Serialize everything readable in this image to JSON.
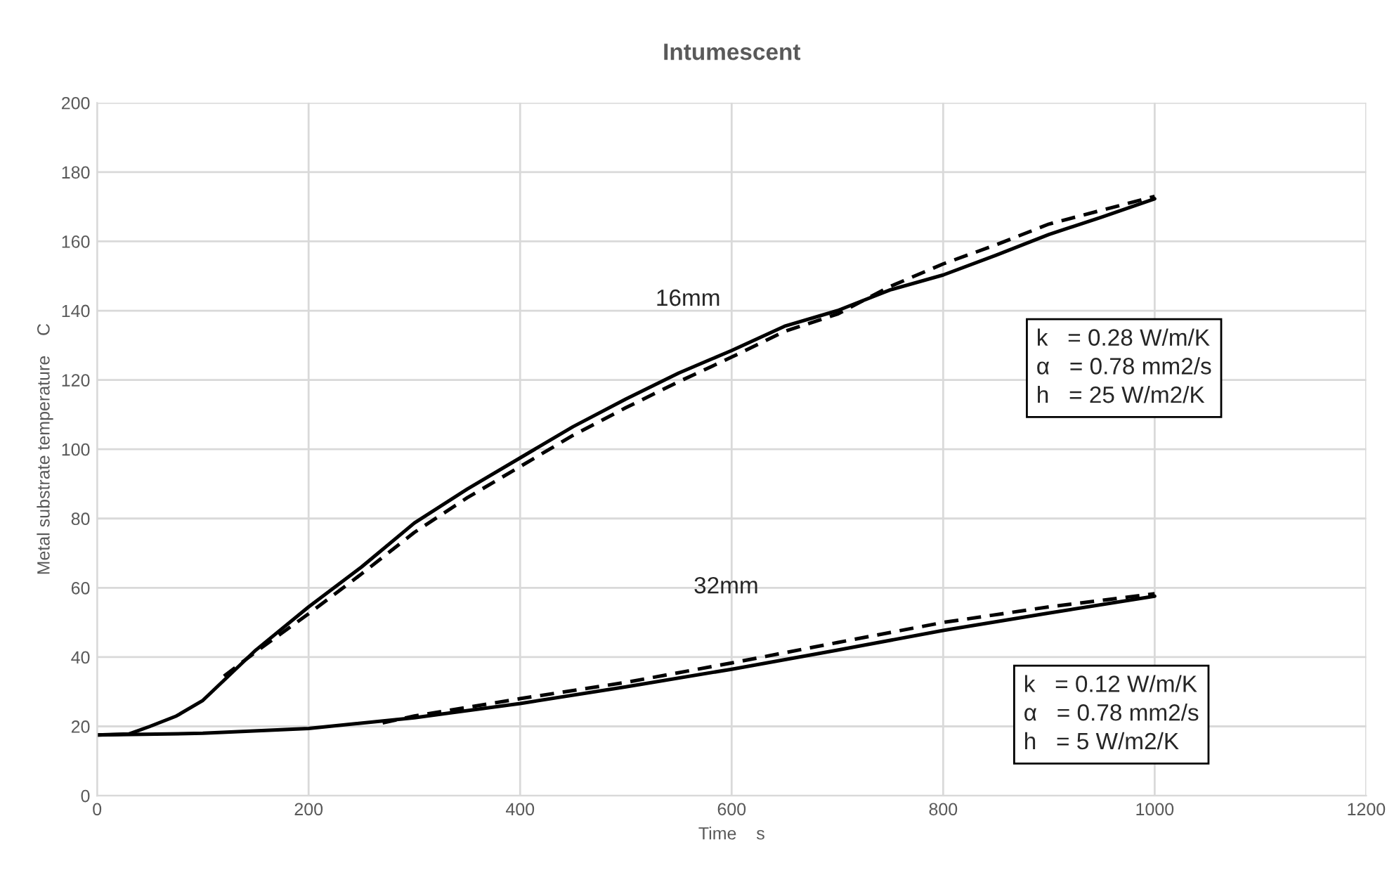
{
  "chart_data": {
    "type": "line",
    "title": "Intumescent",
    "xlabel": "Time    s",
    "ylabel": "Metal substrate temperature    C",
    "xlim": [
      0,
      1200
    ],
    "xticks": [
      0,
      200,
      400,
      600,
      800,
      1000,
      1200
    ],
    "ylim": [
      0,
      200
    ],
    "yticks": [
      0,
      20,
      40,
      60,
      80,
      100,
      120,
      140,
      160,
      180,
      200
    ],
    "grid": true,
    "series": [
      {
        "color": "#000000",
        "line_style": "solid",
        "x": [
          0,
          30,
          50,
          75,
          100,
          150,
          200,
          250,
          300,
          350,
          400,
          450,
          500,
          550,
          600,
          650,
          700,
          750,
          800,
          850,
          900,
          950,
          1000
        ],
        "values": [
          17.5,
          17.8,
          20,
          23,
          27.5,
          42,
          54.5,
          66,
          78.7,
          88.5,
          97.5,
          106.5,
          114.5,
          122,
          128.5,
          135.5,
          140,
          146,
          150.3,
          156,
          162,
          167,
          172.3
        ]
      },
      {
        "color": "#000000",
        "line_style": "dashed",
        "x": [
          120,
          150,
          200,
          250,
          300,
          350,
          400,
          450,
          500,
          550,
          600,
          650,
          700,
          750,
          800,
          850,
          900,
          950,
          1000
        ],
        "values": [
          34.5,
          41.5,
          52.5,
          64,
          76,
          86,
          95,
          104,
          112,
          119.5,
          126.6,
          134,
          139,
          147,
          153.5,
          159,
          165,
          169,
          173
        ]
      },
      {
        "color": "#000000",
        "line_style": "solid",
        "x": [
          0,
          100,
          200,
          300,
          400,
          500,
          600,
          700,
          800,
          900,
          1000
        ],
        "values": [
          17.5,
          18,
          19.4,
          22.5,
          26.6,
          31.4,
          36.5,
          42,
          47.7,
          52.7,
          57.6
        ]
      },
      {
        "color": "#000000",
        "line_style": "dashed",
        "x": [
          270,
          300,
          400,
          500,
          600,
          700,
          800,
          900,
          1000
        ],
        "values": [
          21,
          23,
          28,
          32.7,
          38.3,
          44.2,
          50,
          54.5,
          58.3
        ]
      }
    ],
    "annotations": [
      "16mm",
      "32mm",
      "k   = 0.28 W/m/K\nα   = 0.78 mm2/s\nh   = 25 W/m2/K",
      "k   = 0.12 W/m/K\nα   = 0.78 mm2/s\nh   = 5 W/m2/K"
    ]
  }
}
